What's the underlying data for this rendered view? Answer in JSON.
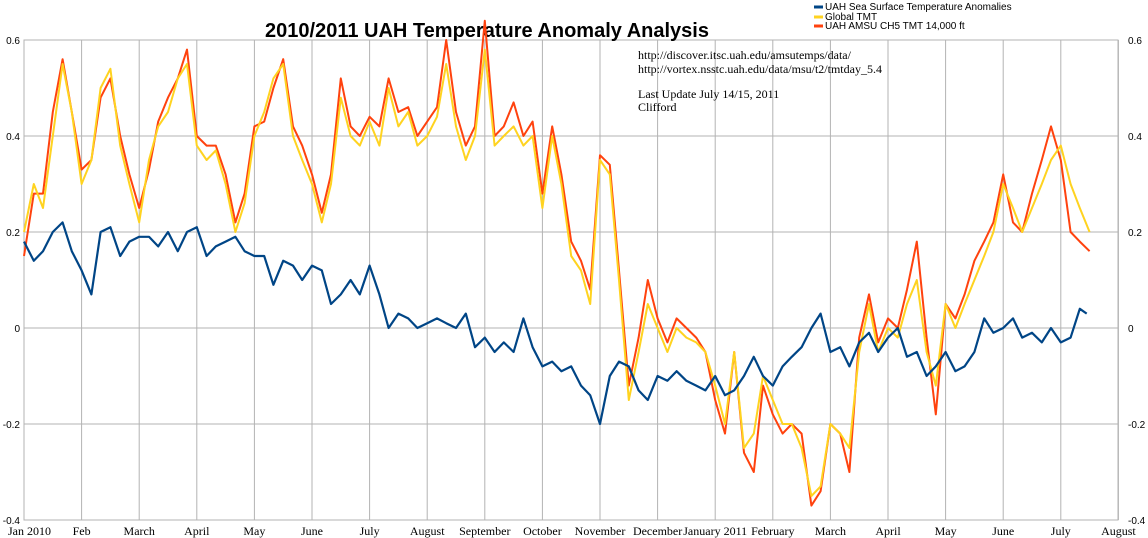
{
  "chart_data": {
    "type": "line",
    "title": "2010/2011 UAH Temperature Anomaly Analysis",
    "ylim": [
      -0.4,
      0.6
    ],
    "y_ticks": [
      "0.6",
      "0.4",
      "0.2",
      "0",
      "-0.2",
      "-0.4"
    ],
    "x_labels": [
      "Jan 2010",
      "Feb",
      "March",
      "April",
      "May",
      "June",
      "July",
      "August",
      "September",
      "October",
      "November",
      "December",
      "January 2011",
      "February",
      "March",
      "April",
      "May",
      "June",
      "July",
      "August"
    ],
    "grid": "on",
    "legend_position": "top-right",
    "annotations": [
      "http://discover.itsc.uah.edu/amsutemps/data/",
      "http://vortex.nsstc.uah.edu/data/msu/t2/tmtday_5.4",
      "Last Update July 14/15, 2011",
      "Clifford"
    ],
    "series": [
      {
        "name": "UAH Sea Surface Temperature Anomalies",
        "color": "#004586",
        "x_month_offset": [
          0.0,
          0.17,
          0.33,
          0.5,
          0.67,
          0.83,
          1.0,
          1.17,
          1.33,
          1.5,
          1.67,
          1.83,
          2.0,
          2.17,
          2.33,
          2.5,
          2.67,
          2.83,
          3.0,
          3.17,
          3.33,
          3.5,
          3.67,
          3.83,
          4.0,
          4.17,
          4.33,
          4.5,
          4.67,
          4.83,
          5.0,
          5.17,
          5.33,
          5.5,
          5.67,
          5.83,
          6.0,
          6.17,
          6.33,
          6.5,
          6.67,
          6.83,
          7.0,
          7.17,
          7.33,
          7.5,
          7.67,
          7.83,
          8.0,
          8.17,
          8.33,
          8.5,
          8.67,
          8.83,
          9.0,
          9.17,
          9.33,
          9.5,
          9.67,
          9.83,
          10.0,
          10.17,
          10.33,
          10.5,
          10.67,
          10.83,
          11.0,
          11.17,
          11.33,
          11.5,
          11.67,
          11.83,
          12.0,
          12.17,
          12.33,
          12.5,
          12.67,
          12.83,
          13.0,
          13.17,
          13.33,
          13.5,
          13.67,
          13.83,
          14.0,
          14.17,
          14.33,
          14.5,
          14.67,
          14.83,
          15.0,
          15.17,
          15.33,
          15.5,
          15.67,
          15.83,
          16.0,
          16.17,
          16.33,
          16.5,
          16.67,
          16.83,
          17.0,
          17.17,
          17.33,
          17.5,
          17.67,
          17.83,
          18.0,
          18.17,
          18.33,
          18.45
        ],
        "values": [
          0.18,
          0.14,
          0.16,
          0.2,
          0.22,
          0.16,
          0.12,
          0.07,
          0.2,
          0.21,
          0.15,
          0.18,
          0.19,
          0.19,
          0.17,
          0.2,
          0.16,
          0.2,
          0.21,
          0.15,
          0.17,
          0.18,
          0.19,
          0.16,
          0.15,
          0.15,
          0.09,
          0.14,
          0.13,
          0.1,
          0.13,
          0.12,
          0.05,
          0.07,
          0.1,
          0.07,
          0.13,
          0.07,
          0.0,
          0.03,
          0.02,
          0.0,
          0.01,
          0.02,
          0.01,
          0.0,
          0.03,
          -0.04,
          -0.02,
          -0.05,
          -0.03,
          -0.05,
          0.02,
          -0.04,
          -0.08,
          -0.07,
          -0.09,
          -0.08,
          -0.12,
          -0.14,
          -0.2,
          -0.1,
          -0.07,
          -0.08,
          -0.13,
          -0.15,
          -0.1,
          -0.11,
          -0.09,
          -0.11,
          -0.12,
          -0.13,
          -0.1,
          -0.14,
          -0.13,
          -0.1,
          -0.06,
          -0.1,
          -0.12,
          -0.08,
          -0.06,
          -0.04,
          0.0,
          0.03,
          -0.05,
          -0.04,
          -0.08,
          -0.03,
          -0.01,
          -0.05,
          -0.02,
          0.0,
          -0.06,
          -0.05,
          -0.1,
          -0.08,
          -0.05,
          -0.09,
          -0.08,
          -0.05,
          0.02,
          -0.01,
          0.0,
          0.02,
          -0.02,
          -0.01,
          -0.03,
          0.0,
          -0.03,
          -0.02,
          0.04,
          0.03
        ]
      },
      {
        "name": "Global TMT",
        "color": "#ffd320",
        "x_month_offset": [
          0.0,
          0.17,
          0.33,
          0.5,
          0.67,
          0.83,
          1.0,
          1.17,
          1.33,
          1.5,
          1.67,
          1.83,
          2.0,
          2.17,
          2.33,
          2.5,
          2.67,
          2.83,
          3.0,
          3.17,
          3.33,
          3.5,
          3.67,
          3.83,
          4.0,
          4.17,
          4.33,
          4.5,
          4.67,
          4.83,
          5.0,
          5.17,
          5.33,
          5.5,
          5.67,
          5.83,
          6.0,
          6.17,
          6.33,
          6.5,
          6.67,
          6.83,
          7.0,
          7.17,
          7.33,
          7.5,
          7.67,
          7.83,
          8.0,
          8.17,
          8.33,
          8.5,
          8.67,
          8.83,
          9.0,
          9.17,
          9.33,
          9.5,
          9.67,
          9.83,
          10.0,
          10.17,
          10.33,
          10.5,
          10.67,
          10.83,
          11.0,
          11.17,
          11.33,
          11.5,
          11.67,
          11.83,
          12.0,
          12.17,
          12.33,
          12.5,
          12.67,
          12.83,
          13.0,
          13.17,
          13.33,
          13.5,
          13.67,
          13.83,
          14.0,
          14.17,
          14.33,
          14.5,
          14.67,
          14.83,
          15.0,
          15.17,
          15.33,
          15.5,
          15.67,
          15.83,
          16.0,
          16.17,
          16.33,
          16.5,
          16.67,
          16.83,
          17.0,
          17.17,
          17.33,
          17.5,
          17.67,
          17.83,
          18.0,
          18.17,
          18.33,
          18.5
        ],
        "values": [
          0.2,
          0.3,
          0.25,
          0.4,
          0.55,
          0.45,
          0.3,
          0.35,
          0.5,
          0.54,
          0.38,
          0.3,
          0.22,
          0.35,
          0.42,
          0.45,
          0.52,
          0.55,
          0.38,
          0.35,
          0.37,
          0.3,
          0.2,
          0.26,
          0.4,
          0.45,
          0.52,
          0.55,
          0.4,
          0.35,
          0.3,
          0.22,
          0.3,
          0.48,
          0.4,
          0.38,
          0.43,
          0.38,
          0.5,
          0.42,
          0.45,
          0.38,
          0.4,
          0.44,
          0.55,
          0.42,
          0.35,
          0.4,
          0.58,
          0.38,
          0.4,
          0.42,
          0.38,
          0.4,
          0.25,
          0.4,
          0.3,
          0.15,
          0.12,
          0.05,
          0.35,
          0.32,
          0.1,
          -0.15,
          -0.05,
          0.05,
          0.0,
          -0.05,
          0.0,
          -0.02,
          -0.03,
          -0.05,
          -0.12,
          -0.2,
          -0.05,
          -0.25,
          -0.22,
          -0.1,
          -0.15,
          -0.2,
          -0.2,
          -0.25,
          -0.35,
          -0.33,
          -0.2,
          -0.22,
          -0.25,
          -0.05,
          0.05,
          -0.05,
          0.0,
          -0.02,
          0.05,
          0.1,
          -0.05,
          -0.12,
          0.05,
          0.0,
          0.05,
          0.1,
          0.15,
          0.2,
          0.3,
          0.25,
          0.2,
          0.25,
          0.3,
          0.35,
          0.38,
          0.3,
          0.25,
          0.2
        ]
      },
      {
        "name": "UAH AMSU CH5 TMT 14,000 ft",
        "color": "#ff420e",
        "x_month_offset": [
          0.0,
          0.17,
          0.33,
          0.5,
          0.67,
          0.83,
          1.0,
          1.17,
          1.33,
          1.5,
          1.67,
          1.83,
          2.0,
          2.17,
          2.33,
          2.5,
          2.67,
          2.83,
          3.0,
          3.17,
          3.33,
          3.5,
          3.67,
          3.83,
          4.0,
          4.17,
          4.33,
          4.5,
          4.67,
          4.83,
          5.0,
          5.17,
          5.33,
          5.5,
          5.67,
          5.83,
          6.0,
          6.17,
          6.33,
          6.5,
          6.67,
          6.83,
          7.0,
          7.17,
          7.33,
          7.5,
          7.67,
          7.83,
          8.0,
          8.17,
          8.33,
          8.5,
          8.67,
          8.83,
          9.0,
          9.17,
          9.33,
          9.5,
          9.67,
          9.83,
          10.0,
          10.17,
          10.33,
          10.5,
          10.67,
          10.83,
          11.0,
          11.17,
          11.33,
          11.5,
          11.67,
          11.83,
          12.0,
          12.17,
          12.33,
          12.5,
          12.67,
          12.83,
          13.0,
          13.17,
          13.33,
          13.5,
          13.67,
          13.83,
          14.0,
          14.17,
          14.33,
          14.5,
          14.67,
          14.83,
          15.0,
          15.17,
          15.33,
          15.5,
          15.67,
          15.83,
          16.0,
          16.17,
          16.33,
          16.5,
          16.67,
          16.83,
          17.0,
          17.17,
          17.33,
          17.5,
          17.67,
          17.83,
          18.0,
          18.17,
          18.33,
          18.5
        ],
        "values": [
          0.15,
          0.28,
          0.28,
          0.45,
          0.56,
          0.45,
          0.33,
          0.35,
          0.48,
          0.52,
          0.4,
          0.32,
          0.25,
          0.33,
          0.43,
          0.48,
          0.52,
          0.58,
          0.4,
          0.38,
          0.38,
          0.32,
          0.22,
          0.28,
          0.42,
          0.43,
          0.5,
          0.56,
          0.42,
          0.38,
          0.32,
          0.24,
          0.32,
          0.52,
          0.42,
          0.4,
          0.44,
          0.42,
          0.52,
          0.45,
          0.46,
          0.4,
          0.43,
          0.46,
          0.6,
          0.45,
          0.38,
          0.42,
          0.64,
          0.4,
          0.42,
          0.47,
          0.4,
          0.43,
          0.28,
          0.42,
          0.32,
          0.18,
          0.14,
          0.08,
          0.36,
          0.34,
          0.12,
          -0.12,
          -0.02,
          0.1,
          0.02,
          -0.03,
          0.02,
          0.0,
          -0.02,
          -0.05,
          -0.15,
          -0.22,
          -0.05,
          -0.26,
          -0.3,
          -0.12,
          -0.18,
          -0.22,
          -0.2,
          -0.22,
          -0.37,
          -0.34,
          -0.2,
          -0.22,
          -0.3,
          -0.02,
          0.07,
          -0.03,
          0.02,
          0.0,
          0.08,
          0.18,
          -0.02,
          -0.18,
          0.05,
          0.02,
          0.07,
          0.14,
          0.18,
          0.22,
          0.32,
          0.22,
          0.2,
          0.28,
          0.35,
          0.42,
          0.35,
          0.2,
          0.18,
          0.16
        ]
      }
    ]
  }
}
